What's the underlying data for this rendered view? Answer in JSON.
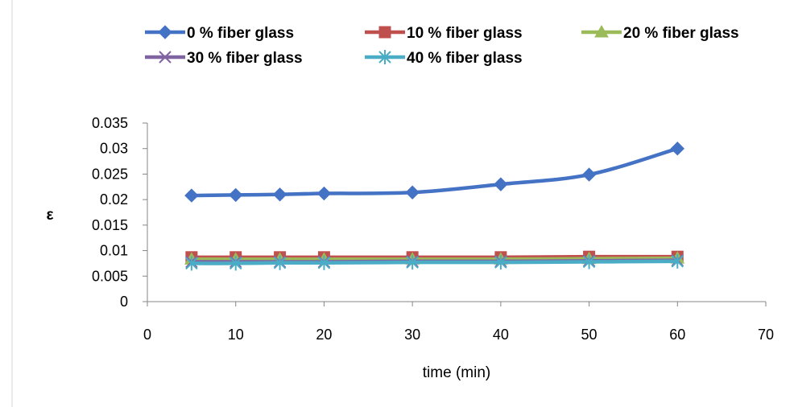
{
  "chart_data": {
    "type": "line",
    "title": "",
    "xlabel": "time (min)",
    "ylabel": "ε",
    "x": [
      5,
      10,
      15,
      20,
      30,
      40,
      50,
      60
    ],
    "xlim": [
      0,
      70
    ],
    "ylim": [
      0,
      0.035
    ],
    "xticks": [
      "0",
      "10",
      "20",
      "30",
      "40",
      "50",
      "60",
      "70"
    ],
    "yticks": [
      "0",
      "0.005",
      "0.01",
      "0.015",
      "0.02",
      "0.025",
      "0.03",
      "0.035"
    ],
    "grid": false,
    "legend_position": "top",
    "smooth": true,
    "series": [
      {
        "name": "0 % fiber glass",
        "color": "#4472C4",
        "marker": "diamond",
        "values": [
          0.0208,
          0.0209,
          0.021,
          0.0212,
          0.0214,
          0.023,
          0.0249,
          0.03
        ]
      },
      {
        "name": "10 % fiber glass",
        "color": "#C0504D",
        "marker": "square",
        "values": [
          0.0087,
          0.0087,
          0.0087,
          0.0087,
          0.0087,
          0.0087,
          0.0088,
          0.0088
        ]
      },
      {
        "name": "20 % fiber glass",
        "color": "#9BBB59",
        "marker": "triangle",
        "values": [
          0.0083,
          0.0083,
          0.0083,
          0.0083,
          0.0083,
          0.0083,
          0.0084,
          0.0085
        ]
      },
      {
        "name": "30 % fiber glass",
        "color": "#8064A2",
        "marker": "x",
        "values": [
          0.0078,
          0.0078,
          0.0078,
          0.0078,
          0.0079,
          0.0079,
          0.008,
          0.0081
        ]
      },
      {
        "name": "40 % fiber glass",
        "color": "#4BACC6",
        "marker": "asterisk",
        "values": [
          0.0075,
          0.0075,
          0.0076,
          0.0076,
          0.0077,
          0.0077,
          0.0078,
          0.0079
        ]
      }
    ]
  }
}
